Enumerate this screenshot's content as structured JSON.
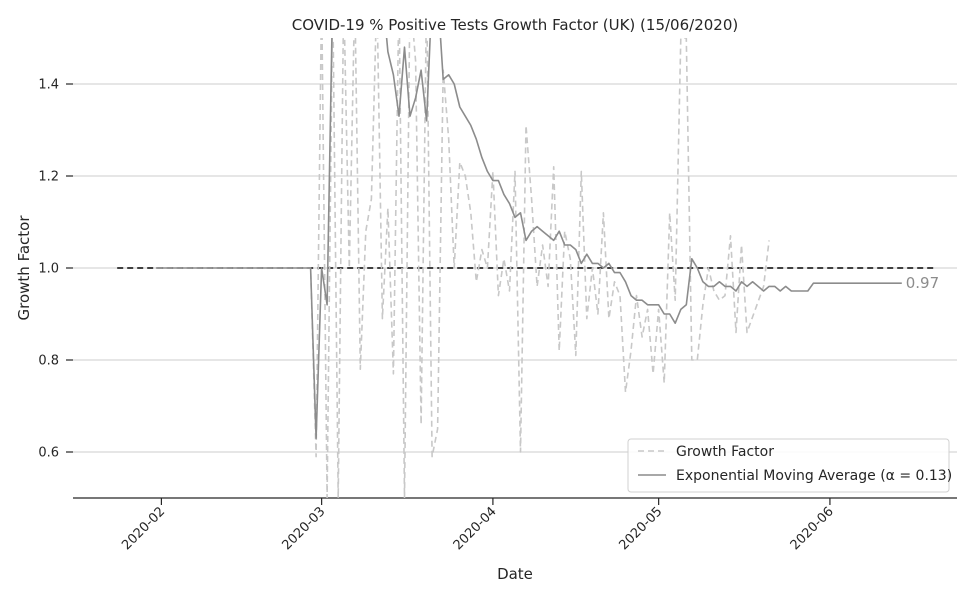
{
  "chart_data": {
    "type": "line",
    "title": "COVID-19 % Positive Tests Growth Factor (UK) (15/06/2020)",
    "xlabel": "Date",
    "ylabel": "Growth Factor",
    "ylim": [
      0.5,
      1.5
    ],
    "xlim": [
      "2020-01-16",
      "2020-06-24"
    ],
    "y_ticks": [
      0.6,
      0.8,
      1.0,
      1.2,
      1.4
    ],
    "y_tick_labels": [
      "0.6",
      "0.8",
      "1.0",
      "1.2",
      "1.4"
    ],
    "x_ticks": [
      "2020-02-01",
      "2020-03-01",
      "2020-04-01",
      "2020-05-01",
      "2020-06-01"
    ],
    "x_tick_labels": [
      "2020-02",
      "2020-03",
      "2020-04",
      "2020-05",
      "2020-06"
    ],
    "grid": "horizontal",
    "legend_position": "lower-right",
    "reference_line": {
      "y": 1.0,
      "from": "2020-01-24",
      "to": "2020-06-20",
      "color": "#000000",
      "style": "dashed"
    },
    "end_annotation": {
      "text": "0.97",
      "x": "2020-06-14",
      "y": 0.967
    },
    "series": [
      {
        "name": "Growth Factor",
        "color": "#c8c8c8",
        "style": "dashed",
        "points": [
          [
            "2020-01-31",
            1.0
          ],
          [
            "2020-02-28",
            1.0
          ],
          [
            "2020-02-29",
            0.59
          ],
          [
            "2020-03-01",
            1.6
          ],
          [
            "2020-03-02",
            0.5
          ],
          [
            "2020-03-03",
            1.6
          ],
          [
            "2020-03-04",
            0.5
          ],
          [
            "2020-03-05",
            1.6
          ],
          [
            "2020-03-06",
            1.0
          ],
          [
            "2020-03-07",
            1.6
          ],
          [
            "2020-03-08",
            0.78
          ],
          [
            "2020-03-09",
            1.08
          ],
          [
            "2020-03-10",
            1.15
          ],
          [
            "2020-03-11",
            1.6
          ],
          [
            "2020-03-12",
            0.89
          ],
          [
            "2020-03-13",
            1.13
          ],
          [
            "2020-03-14",
            0.77
          ],
          [
            "2020-03-15",
            1.6
          ],
          [
            "2020-03-16",
            0.5
          ],
          [
            "2020-03-17",
            1.6
          ],
          [
            "2020-03-18",
            1.45
          ],
          [
            "2020-03-19",
            0.66
          ],
          [
            "2020-03-20",
            1.6
          ],
          [
            "2020-03-21",
            0.59
          ],
          [
            "2020-03-22",
            0.65
          ],
          [
            "2020-03-23",
            1.43
          ],
          [
            "2020-03-24",
            1.28
          ],
          [
            "2020-03-25",
            1.0
          ],
          [
            "2020-03-26",
            1.23
          ],
          [
            "2020-03-27",
            1.2
          ],
          [
            "2020-03-28",
            1.12
          ],
          [
            "2020-03-29",
            0.97
          ],
          [
            "2020-03-30",
            1.04
          ],
          [
            "2020-03-31",
            1.0
          ],
          [
            "2020-04-01",
            1.21
          ],
          [
            "2020-04-02",
            0.94
          ],
          [
            "2020-04-03",
            1.02
          ],
          [
            "2020-04-04",
            0.95
          ],
          [
            "2020-04-05",
            1.21
          ],
          [
            "2020-04-06",
            0.6
          ],
          [
            "2020-04-07",
            1.31
          ],
          [
            "2020-04-08",
            1.15
          ],
          [
            "2020-04-09",
            0.96
          ],
          [
            "2020-04-10",
            1.05
          ],
          [
            "2020-04-11",
            0.96
          ],
          [
            "2020-04-12",
            1.22
          ],
          [
            "2020-04-13",
            0.82
          ],
          [
            "2020-04-14",
            1.08
          ],
          [
            "2020-04-15",
            1.02
          ],
          [
            "2020-04-16",
            0.81
          ],
          [
            "2020-04-17",
            1.21
          ],
          [
            "2020-04-18",
            0.89
          ],
          [
            "2020-04-19",
            1.0
          ],
          [
            "2020-04-20",
            0.9
          ],
          [
            "2020-04-21",
            1.12
          ],
          [
            "2020-04-22",
            0.89
          ],
          [
            "2020-04-23",
            0.97
          ],
          [
            "2020-04-24",
            0.94
          ],
          [
            "2020-04-25",
            0.73
          ],
          [
            "2020-04-26",
            0.82
          ],
          [
            "2020-04-27",
            0.94
          ],
          [
            "2020-04-28",
            0.85
          ],
          [
            "2020-04-29",
            0.91
          ],
          [
            "2020-04-30",
            0.77
          ],
          [
            "2020-05-01",
            0.91
          ],
          [
            "2020-05-02",
            0.75
          ],
          [
            "2020-05-03",
            1.12
          ],
          [
            "2020-05-04",
            0.93
          ],
          [
            "2020-05-05",
            1.5
          ],
          [
            "2020-05-06",
            1.5
          ],
          [
            "2020-05-07",
            0.8
          ],
          [
            "2020-05-08",
            0.8
          ],
          [
            "2020-05-09",
            0.92
          ],
          [
            "2020-05-10",
            1.0
          ],
          [
            "2020-05-11",
            0.95
          ],
          [
            "2020-05-12",
            0.93
          ],
          [
            "2020-05-13",
            0.94
          ],
          [
            "2020-05-14",
            1.07
          ],
          [
            "2020-05-15",
            0.86
          ],
          [
            "2020-05-16",
            1.05
          ],
          [
            "2020-05-17",
            0.86
          ],
          [
            "2020-05-20",
            0.96
          ],
          [
            "2020-05-21",
            1.06
          ]
        ]
      },
      {
        "name": "Exponential Moving Average (α = 0.13)",
        "color": "#8c8c8c",
        "style": "solid",
        "points": [
          [
            "2020-01-31",
            1.0
          ],
          [
            "2020-02-28",
            1.0
          ],
          [
            "2020-02-29",
            0.63
          ],
          [
            "2020-03-01",
            1.0
          ],
          [
            "2020-03-02",
            0.92
          ],
          [
            "2020-03-03",
            1.6
          ],
          [
            "2020-03-12",
            1.6
          ],
          [
            "2020-03-13",
            1.47
          ],
          [
            "2020-03-14",
            1.42
          ],
          [
            "2020-03-15",
            1.33
          ],
          [
            "2020-03-16",
            1.48
          ],
          [
            "2020-03-17",
            1.33
          ],
          [
            "2020-03-18",
            1.37
          ],
          [
            "2020-03-19",
            1.43
          ],
          [
            "2020-03-20",
            1.32
          ],
          [
            "2020-03-21",
            1.6
          ],
          [
            "2020-03-22",
            1.6
          ],
          [
            "2020-03-23",
            1.41
          ],
          [
            "2020-03-24",
            1.42
          ],
          [
            "2020-03-25",
            1.4
          ],
          [
            "2020-03-26",
            1.35
          ],
          [
            "2020-03-27",
            1.33
          ],
          [
            "2020-03-28",
            1.31
          ],
          [
            "2020-03-29",
            1.28
          ],
          [
            "2020-03-30",
            1.24
          ],
          [
            "2020-03-31",
            1.21
          ],
          [
            "2020-04-01",
            1.19
          ],
          [
            "2020-04-02",
            1.19
          ],
          [
            "2020-04-03",
            1.16
          ],
          [
            "2020-04-04",
            1.14
          ],
          [
            "2020-04-05",
            1.11
          ],
          [
            "2020-04-06",
            1.12
          ],
          [
            "2020-04-07",
            1.06
          ],
          [
            "2020-04-08",
            1.08
          ],
          [
            "2020-04-09",
            1.09
          ],
          [
            "2020-04-10",
            1.08
          ],
          [
            "2020-04-11",
            1.07
          ],
          [
            "2020-04-12",
            1.06
          ],
          [
            "2020-04-13",
            1.08
          ],
          [
            "2020-04-14",
            1.05
          ],
          [
            "2020-04-15",
            1.05
          ],
          [
            "2020-04-16",
            1.04
          ],
          [
            "2020-04-17",
            1.01
          ],
          [
            "2020-04-18",
            1.03
          ],
          [
            "2020-04-19",
            1.01
          ],
          [
            "2020-04-20",
            1.01
          ],
          [
            "2020-04-21",
            1.0
          ],
          [
            "2020-04-22",
            1.01
          ],
          [
            "2020-04-23",
            0.99
          ],
          [
            "2020-04-24",
            0.99
          ],
          [
            "2020-04-25",
            0.97
          ],
          [
            "2020-04-26",
            0.94
          ],
          [
            "2020-04-27",
            0.93
          ],
          [
            "2020-04-28",
            0.93
          ],
          [
            "2020-04-29",
            0.92
          ],
          [
            "2020-04-30",
            0.92
          ],
          [
            "2020-05-01",
            0.92
          ],
          [
            "2020-05-02",
            0.9
          ],
          [
            "2020-05-03",
            0.9
          ],
          [
            "2020-05-04",
            0.88
          ],
          [
            "2020-05-05",
            0.91
          ],
          [
            "2020-05-06",
            0.92
          ],
          [
            "2020-05-07",
            1.02
          ],
          [
            "2020-05-08",
            1.0
          ],
          [
            "2020-05-09",
            0.97
          ],
          [
            "2020-05-10",
            0.96
          ],
          [
            "2020-05-11",
            0.96
          ],
          [
            "2020-05-12",
            0.97
          ],
          [
            "2020-05-13",
            0.96
          ],
          [
            "2020-05-14",
            0.96
          ],
          [
            "2020-05-15",
            0.95
          ],
          [
            "2020-05-16",
            0.97
          ],
          [
            "2020-05-17",
            0.96
          ],
          [
            "2020-05-18",
            0.97
          ],
          [
            "2020-05-19",
            0.96
          ],
          [
            "2020-05-20",
            0.95
          ],
          [
            "2020-05-21",
            0.96
          ],
          [
            "2020-05-22",
            0.96
          ],
          [
            "2020-05-23",
            0.95
          ],
          [
            "2020-05-24",
            0.96
          ],
          [
            "2020-05-25",
            0.95
          ],
          [
            "2020-05-26",
            0.95
          ],
          [
            "2020-05-27",
            0.95
          ],
          [
            "2020-05-28",
            0.95
          ],
          [
            "2020-05-29",
            0.967
          ],
          [
            "2020-06-14",
            0.967
          ]
        ]
      }
    ]
  }
}
